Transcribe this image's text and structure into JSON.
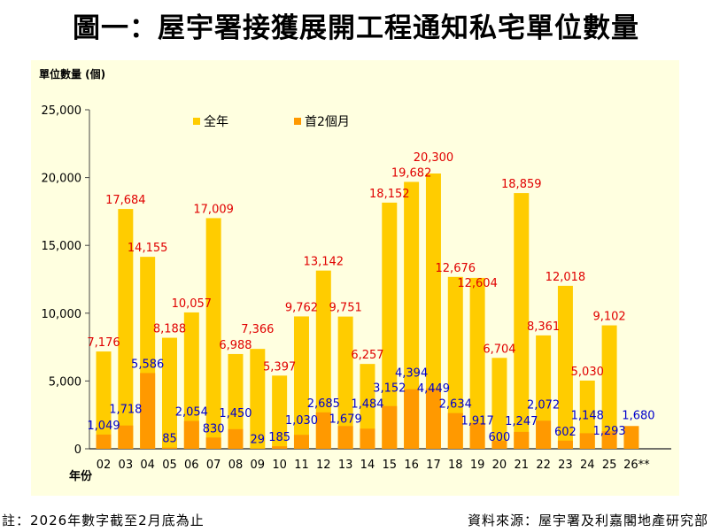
{
  "title": "圖一：屋宇署接獲展開工程通知私宅單位數量",
  "footnote": "註：2026年數字截至2月底為止",
  "source": "資料來源：屋宇署及利嘉閣地產研究部",
  "colors": {
    "full_year": "#FFCC00",
    "first_two_months": "#FF9900",
    "full_label": "#E00000",
    "partial_label": "#0000CC",
    "background": "#FFFFE0"
  },
  "chart_data": {
    "type": "bar",
    "ylabel": "單位數量 (個)",
    "xlabel": "年份",
    "ylim": [
      0,
      25000
    ],
    "yticks": [
      "0",
      "5,000",
      "10,000",
      "15,000",
      "20,000",
      "25,000"
    ],
    "grid": false,
    "legend_position": "top-left",
    "categories": [
      "02",
      "03",
      "04",
      "05",
      "06",
      "07",
      "08",
      "09",
      "10",
      "11",
      "12",
      "13",
      "14",
      "15",
      "16",
      "17",
      "18",
      "19",
      "20",
      "21",
      "22",
      "23",
      "24",
      "25",
      "26**"
    ],
    "series": [
      {
        "name": "全年",
        "values": [
          7176,
          17684,
          14155,
          8188,
          10057,
          17009,
          6988,
          7366,
          5397,
          9762,
          13142,
          9751,
          6257,
          18152,
          19682,
          20300,
          12676,
          12604,
          6704,
          18859,
          8361,
          12018,
          5030,
          9102,
          null
        ]
      },
      {
        "name": "首2個月",
        "values": [
          1049,
          1718,
          5586,
          85,
          2054,
          830,
          1450,
          29,
          185,
          1030,
          2685,
          1679,
          1484,
          3152,
          4394,
          4449,
          2634,
          1917,
          600,
          1247,
          2072,
          602,
          1148,
          1293,
          1680
        ]
      }
    ]
  }
}
